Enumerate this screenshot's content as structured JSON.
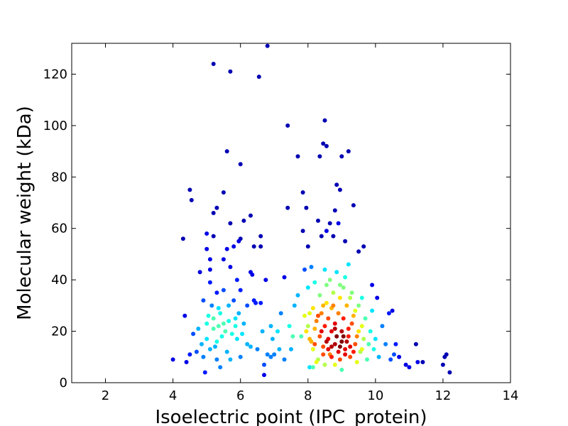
{
  "chart_data": {
    "type": "scatter",
    "title": "",
    "xlabel": "Isoelectric point (IPC_protein)",
    "ylabel": "Molecular weight (kDa)",
    "xlim": [
      1,
      14
    ],
    "ylim": [
      0,
      132
    ],
    "xticks": [
      2,
      4,
      6,
      8,
      10,
      12,
      14
    ],
    "yticks": [
      0,
      20,
      40,
      60,
      80,
      100,
      120
    ],
    "grid": false,
    "legend": "none",
    "colormap": "jet (point density)",
    "points": [
      [
        4.0,
        9,
        0.1
      ],
      [
        4.3,
        56,
        0.05
      ],
      [
        4.35,
        26,
        0.1
      ],
      [
        4.4,
        8,
        0.1
      ],
      [
        4.5,
        75,
        0.05
      ],
      [
        4.55,
        71,
        0.05
      ],
      [
        4.5,
        11,
        0.15
      ],
      [
        4.6,
        19,
        0.2
      ],
      [
        4.7,
        12,
        0.2
      ],
      [
        4.8,
        43,
        0.1
      ],
      [
        4.9,
        10,
        0.25
      ],
      [
        4.9,
        32,
        0.2
      ],
      [
        5.0,
        52,
        0.1
      ],
      [
        5.0,
        58,
        0.1
      ],
      [
        5.0,
        23,
        0.4
      ],
      [
        5.0,
        17,
        0.35
      ],
      [
        5.05,
        26,
        0.4
      ],
      [
        5.1,
        48,
        0.1
      ],
      [
        5.1,
        44,
        0.1
      ],
      [
        5.1,
        39,
        0.15
      ],
      [
        5.15,
        30,
        0.25
      ],
      [
        5.2,
        124,
        0.05
      ],
      [
        5.2,
        66,
        0.05
      ],
      [
        5.2,
        57,
        0.05
      ],
      [
        5.2,
        21,
        0.45
      ],
      [
        5.2,
        25,
        0.45
      ],
      [
        5.25,
        14,
        0.3
      ],
      [
        5.3,
        35,
        0.15
      ],
      [
        5.3,
        68,
        0.05
      ],
      [
        5.3,
        9,
        0.25
      ],
      [
        5.35,
        22,
        0.45
      ],
      [
        5.4,
        27,
        0.4
      ],
      [
        5.45,
        18,
        0.4
      ],
      [
        5.5,
        74,
        0.05
      ],
      [
        5.5,
        48,
        0.1
      ],
      [
        5.5,
        36,
        0.2
      ],
      [
        5.55,
        20,
        0.45
      ],
      [
        5.6,
        90,
        0.05
      ],
      [
        5.6,
        52,
        0.1
      ],
      [
        5.6,
        12,
        0.3
      ],
      [
        5.65,
        24,
        0.4
      ],
      [
        5.7,
        121,
        0.05
      ],
      [
        5.7,
        62,
        0.05
      ],
      [
        5.7,
        45,
        0.1
      ],
      [
        5.75,
        19,
        0.4
      ],
      [
        5.8,
        53,
        0.1
      ],
      [
        5.8,
        32,
        0.2
      ],
      [
        5.85,
        25,
        0.35
      ],
      [
        5.9,
        40,
        0.15
      ],
      [
        5.9,
        17,
        0.35
      ],
      [
        5.95,
        55,
        0.1
      ],
      [
        6.0,
        85,
        0.05
      ],
      [
        6.0,
        56,
        0.05
      ],
      [
        6.0,
        36,
        0.15
      ],
      [
        6.0,
        10,
        0.25
      ],
      [
        6.1,
        63,
        0.05
      ],
      [
        6.1,
        23,
        0.3
      ],
      [
        6.2,
        30,
        0.2
      ],
      [
        6.2,
        15,
        0.3
      ],
      [
        6.3,
        65,
        0.05
      ],
      [
        6.3,
        43,
        0.1
      ],
      [
        6.35,
        42,
        0.1
      ],
      [
        6.4,
        53,
        0.05
      ],
      [
        6.4,
        32,
        0.15
      ],
      [
        6.5,
        13,
        0.25
      ],
      [
        6.55,
        119,
        0.05
      ],
      [
        6.6,
        57,
        0.05
      ],
      [
        6.6,
        53,
        0.05
      ],
      [
        6.6,
        31,
        0.15
      ],
      [
        6.65,
        20,
        0.3
      ],
      [
        6.7,
        7,
        0.2
      ],
      [
        6.7,
        3,
        0.1
      ],
      [
        6.75,
        40,
        0.1
      ],
      [
        6.8,
        11,
        0.25
      ],
      [
        6.8,
        131,
        0.05
      ],
      [
        6.9,
        22,
        0.3
      ],
      [
        6.95,
        17,
        0.3
      ],
      [
        7.0,
        11,
        0.25
      ],
      [
        7.1,
        20,
        0.35
      ],
      [
        7.2,
        27,
        0.25
      ],
      [
        7.3,
        41,
        0.1
      ],
      [
        7.3,
        9,
        0.25
      ],
      [
        7.4,
        100,
        0.05
      ],
      [
        7.4,
        68,
        0.05
      ],
      [
        7.45,
        22,
        0.4
      ],
      [
        7.5,
        13,
        0.3
      ],
      [
        7.6,
        30,
        0.3
      ],
      [
        7.7,
        88,
        0.05
      ],
      [
        7.7,
        34,
        0.3
      ],
      [
        7.8,
        18,
        0.45
      ],
      [
        7.85,
        59,
        0.05
      ],
      [
        7.85,
        74,
        0.05
      ],
      [
        7.9,
        44,
        0.2
      ],
      [
        7.9,
        26,
        0.6
      ],
      [
        7.95,
        68,
        0.05
      ],
      [
        8.0,
        53,
        0.05
      ],
      [
        8.0,
        37,
        0.35
      ],
      [
        8.0,
        22,
        0.55
      ],
      [
        8.05,
        27,
        0.6
      ],
      [
        8.05,
        6,
        0.35
      ],
      [
        8.1,
        45,
        0.25
      ],
      [
        8.1,
        16,
        0.7
      ],
      [
        8.15,
        29,
        0.65
      ],
      [
        8.15,
        13,
        0.6
      ],
      [
        8.2,
        39,
        0.4
      ],
      [
        8.2,
        21,
        0.7
      ],
      [
        8.25,
        24,
        0.75
      ],
      [
        8.3,
        63,
        0.05
      ],
      [
        8.3,
        9,
        0.55
      ],
      [
        8.35,
        88,
        0.05
      ],
      [
        8.35,
        34,
        0.5
      ],
      [
        8.35,
        18,
        0.8
      ],
      [
        8.4,
        57,
        0.05
      ],
      [
        8.4,
        27,
        0.75
      ],
      [
        8.45,
        93,
        0.05
      ],
      [
        8.45,
        14,
        0.8
      ],
      [
        8.5,
        102,
        0.05
      ],
      [
        8.5,
        44,
        0.35
      ],
      [
        8.5,
        22,
        0.85
      ],
      [
        8.5,
        7,
        0.55
      ],
      [
        8.55,
        92,
        0.05
      ],
      [
        8.55,
        59,
        0.1
      ],
      [
        8.55,
        31,
        0.65
      ],
      [
        8.6,
        25,
        0.8
      ],
      [
        8.6,
        17,
        0.9
      ],
      [
        8.65,
        62,
        0.05
      ],
      [
        8.65,
        40,
        0.5
      ],
      [
        8.65,
        11,
        0.75
      ],
      [
        8.7,
        20,
        0.9
      ],
      [
        8.7,
        29,
        0.7
      ],
      [
        8.75,
        57,
        0.05
      ],
      [
        8.75,
        35,
        0.55
      ],
      [
        8.8,
        67,
        0.05
      ],
      [
        8.8,
        15,
        0.95
      ],
      [
        8.8,
        23,
        0.9
      ],
      [
        8.8,
        7,
        0.6
      ],
      [
        8.85,
        77,
        0.05
      ],
      [
        8.85,
        43,
        0.35
      ],
      [
        8.85,
        18,
        1.0
      ],
      [
        8.9,
        62,
        0.1
      ],
      [
        8.9,
        27,
        0.75
      ],
      [
        8.9,
        12,
        0.9
      ],
      [
        8.95,
        75,
        0.05
      ],
      [
        8.95,
        33,
        0.65
      ],
      [
        9.0,
        88,
        0.05
      ],
      [
        9.0,
        20,
        0.95
      ],
      [
        9.0,
        16,
        1.0
      ],
      [
        9.0,
        5,
        0.45
      ],
      [
        9.05,
        37,
        0.5
      ],
      [
        9.05,
        25,
        0.85
      ],
      [
        9.1,
        55,
        0.05
      ],
      [
        9.1,
        13,
        0.9
      ],
      [
        9.15,
        30,
        0.7
      ],
      [
        9.2,
        90,
        0.05
      ],
      [
        9.2,
        46,
        0.35
      ],
      [
        9.2,
        18,
        0.85
      ],
      [
        9.25,
        10,
        0.8
      ],
      [
        9.3,
        23,
        0.8
      ],
      [
        9.3,
        35,
        0.5
      ],
      [
        9.35,
        69,
        0.05
      ],
      [
        9.4,
        15,
        0.8
      ],
      [
        9.4,
        28,
        0.6
      ],
      [
        9.45,
        8,
        0.6
      ],
      [
        9.5,
        51,
        0.05
      ],
      [
        9.5,
        20,
        0.65
      ],
      [
        9.55,
        12,
        0.55
      ],
      [
        9.6,
        33,
        0.4
      ],
      [
        9.65,
        53,
        0.05
      ],
      [
        9.65,
        17,
        0.55
      ],
      [
        9.7,
        25,
        0.45
      ],
      [
        9.75,
        9,
        0.45
      ],
      [
        9.8,
        15,
        0.45
      ],
      [
        9.85,
        20,
        0.4
      ],
      [
        9.9,
        38,
        0.1
      ],
      [
        9.9,
        28,
        0.35
      ],
      [
        9.95,
        13,
        0.4
      ],
      [
        10.0,
        17,
        0.35
      ],
      [
        10.05,
        33,
        0.1
      ],
      [
        10.1,
        10,
        0.3
      ],
      [
        10.2,
        22,
        0.25
      ],
      [
        10.3,
        15,
        0.25
      ],
      [
        10.4,
        27,
        0.15
      ],
      [
        10.45,
        9,
        0.2
      ],
      [
        10.5,
        28,
        0.1
      ],
      [
        10.55,
        11,
        0.2
      ],
      [
        10.6,
        15,
        0.15
      ],
      [
        10.7,
        10,
        0.1
      ],
      [
        10.9,
        7,
        0.1
      ],
      [
        11.0,
        6,
        0.1
      ],
      [
        11.2,
        15,
        0.05
      ],
      [
        11.25,
        8,
        0.1
      ],
      [
        11.4,
        8,
        0.05
      ],
      [
        12.0,
        7,
        0.05
      ],
      [
        12.05,
        10,
        0.05
      ],
      [
        12.1,
        11,
        0.05
      ],
      [
        12.2,
        4,
        0.05
      ],
      [
        4.95,
        4,
        0.15
      ],
      [
        5.4,
        6,
        0.25
      ],
      [
        5.7,
        9,
        0.3
      ],
      [
        6.3,
        14,
        0.3
      ],
      [
        6.45,
        31,
        0.15
      ],
      [
        6.9,
        10,
        0.25
      ],
      [
        7.15,
        13,
        0.3
      ],
      [
        7.55,
        18,
        0.45
      ],
      [
        8.15,
        6,
        0.45
      ],
      [
        8.25,
        8,
        0.6
      ],
      [
        8.45,
        11,
        0.8
      ],
      [
        8.6,
        13,
        0.9
      ],
      [
        8.7,
        10,
        0.85
      ],
      [
        8.95,
        9,
        0.8
      ],
      [
        9.1,
        11,
        0.9
      ],
      [
        9.15,
        16,
        0.95
      ],
      [
        9.25,
        14,
        0.9
      ],
      [
        9.35,
        12,
        0.85
      ],
      [
        9.45,
        18,
        0.75
      ],
      [
        9.6,
        13,
        0.6
      ],
      [
        8.3,
        26,
        0.8
      ],
      [
        8.45,
        30,
        0.7
      ],
      [
        8.55,
        38,
        0.5
      ],
      [
        8.75,
        30,
        0.75
      ],
      [
        8.95,
        38,
        0.5
      ],
      [
        9.1,
        41,
        0.4
      ],
      [
        9.25,
        33,
        0.55
      ],
      [
        9.35,
        26,
        0.7
      ],
      [
        9.5,
        30,
        0.5
      ],
      [
        9.6,
        22,
        0.6
      ],
      [
        7.95,
        20,
        0.65
      ],
      [
        8.05,
        17,
        0.7
      ],
      [
        8.2,
        15,
        0.8
      ],
      [
        8.4,
        20,
        0.9
      ],
      [
        8.55,
        16,
        0.95
      ],
      [
        8.7,
        14,
        0.95
      ],
      [
        8.8,
        21,
        0.95
      ],
      [
        8.95,
        14,
        1.0
      ],
      [
        9.05,
        18,
        1.0
      ],
      [
        9.2,
        21,
        0.85
      ],
      [
        5.1,
        13,
        0.3
      ],
      [
        5.3,
        16,
        0.4
      ],
      [
        5.5,
        23,
        0.45
      ],
      [
        5.35,
        29,
        0.35
      ],
      [
        5.85,
        22,
        0.4
      ],
      [
        6.05,
        19,
        0.35
      ],
      [
        4.75,
        21,
        0.3
      ],
      [
        4.85,
        15,
        0.3
      ],
      [
        5.65,
        30,
        0.3
      ],
      [
        5.95,
        27,
        0.3
      ]
    ]
  }
}
